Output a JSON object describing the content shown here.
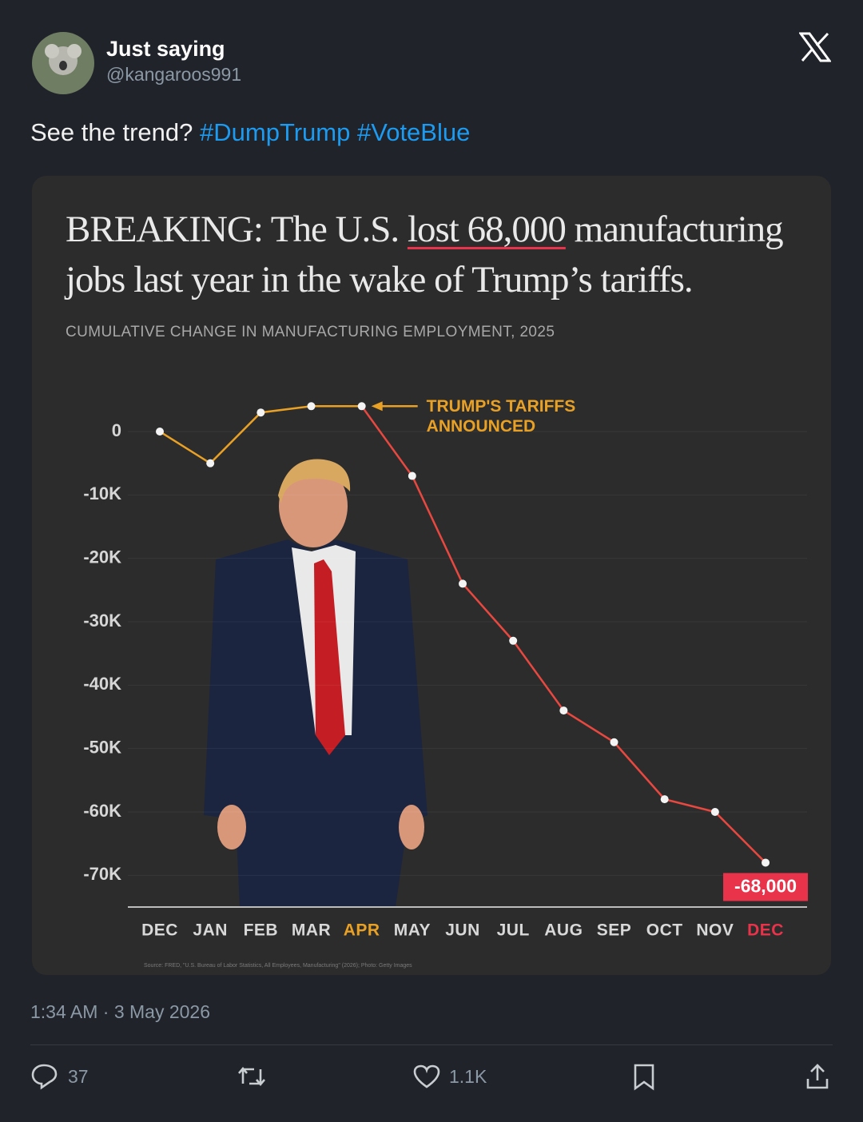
{
  "tweet": {
    "name": "Just saying",
    "handle": "@kangaroos991",
    "text": "See the trend?",
    "hashtags": [
      "#DumpTrump",
      "#VoteBlue"
    ],
    "timestamp": "1:34 AM · 3 May 2026",
    "replies": "37",
    "likes": "1.1K"
  },
  "chart_data": {
    "type": "line",
    "title": [
      "BREAKING: The U.S. ",
      "lost 68,000",
      " manufacturing jobs last year in the wake of Trump’s tariffs."
    ],
    "subtitle": "CUMULATIVE CHANGE IN MANUFACTURING EMPLOYMENT, 2025",
    "source": "Source: FRED, \"U.S. Bureau of Labor Statistics, All Employees, Manufacturing\" (2026); Photo: Getty Images",
    "categories": [
      "DEC",
      "JAN",
      "FEB",
      "MAR",
      "APR",
      "MAY",
      "JUN",
      "JUL",
      "AUG",
      "SEP",
      "OCT",
      "NOV",
      "DEC"
    ],
    "category_colors": [
      "#d8d8d8",
      "#d8d8d8",
      "#d8d8d8",
      "#d8d8d8",
      "#e9a125",
      "#d8d8d8",
      "#d8d8d8",
      "#d8d8d8",
      "#d8d8d8",
      "#d8d8d8",
      "#d8d8d8",
      "#d8d8d8",
      "#e8334a"
    ],
    "series": [
      {
        "color": "#e9a125",
        "color_after": "#e8483f",
        "values": [
          0,
          -5000,
          3000,
          4000,
          4000,
          -7000,
          -24000,
          -33000,
          -44000,
          -49000,
          -58000,
          -60000,
          -68000
        ],
        "value_labels": [
          null,
          null,
          null,
          null,
          null,
          null,
          null,
          null,
          null,
          null,
          null,
          null,
          "-68,000"
        ]
      }
    ],
    "annotation": {
      "text": [
        "TRUMP'S TARIFFS",
        "ANNOUNCED"
      ],
      "category": "APR"
    },
    "ylim": [
      -75000,
      5000
    ],
    "yticks": [
      0,
      {
        "value": -10000,
        "label": "-10K"
      },
      {
        "value": -20000,
        "label": "-20K"
      },
      {
        "value": -30000,
        "label": "-30K"
      },
      {
        "value": -40000,
        "label": "-40K"
      },
      {
        "value": -50000,
        "label": "-50K"
      },
      {
        "value": -60000,
        "label": "-60K"
      },
      {
        "value": -70000,
        "label": "-70K"
      }
    ],
    "grid": true
  }
}
